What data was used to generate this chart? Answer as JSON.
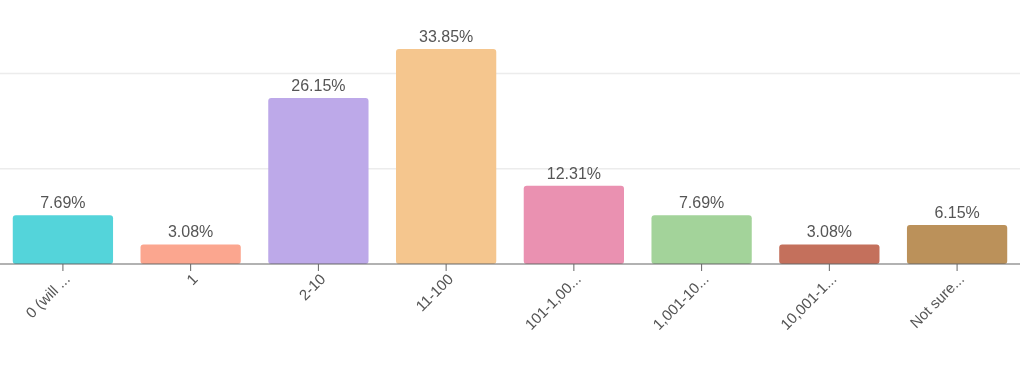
{
  "chart_data": {
    "type": "bar",
    "categories": [
      "0 (will ...",
      "1",
      "2-10",
      "11-100",
      "101-1,00...",
      "1,001-10...",
      "10,001-1...",
      "Not sure..."
    ],
    "values": [
      7.69,
      3.08,
      26.15,
      33.85,
      12.31,
      7.69,
      3.08,
      6.15
    ],
    "colors": [
      "#54d4da",
      "#fba68f",
      "#bda9e9",
      "#f5c68e",
      "#ea91b1",
      "#a3d39a",
      "#c4705c",
      "#bb915a"
    ],
    "value_labels": [
      "7.69%",
      "3.08%",
      "26.15%",
      "33.85%",
      "12.31%",
      "7.69%",
      "3.08%",
      "6.15%"
    ],
    "ref_lines": [
      {
        "axis": "y",
        "value": 15,
        "color": "#ececec"
      },
      {
        "axis": "y",
        "value": 30,
        "color": "#ececec"
      }
    ],
    "tick_labels": "x"
  }
}
